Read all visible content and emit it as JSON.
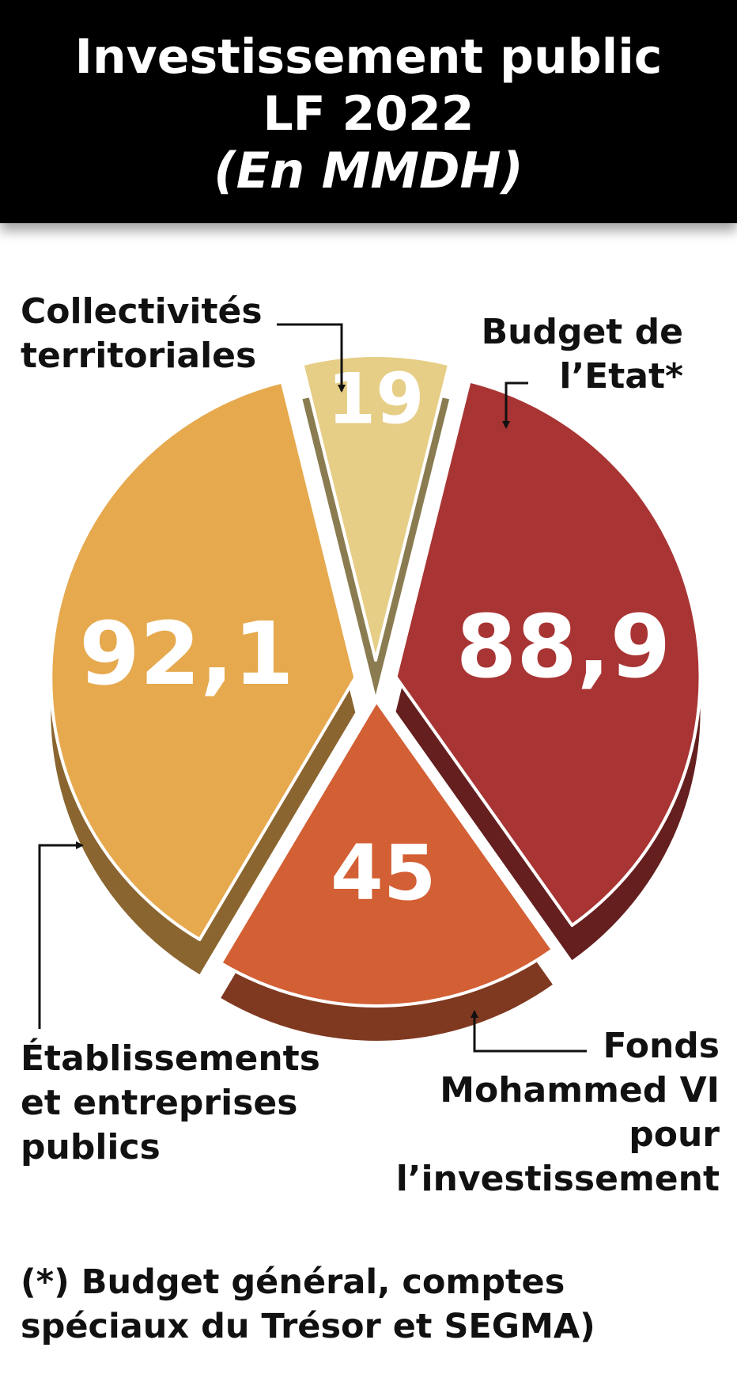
{
  "header": {
    "title_line1": "Investissement public",
    "title_line2": "LF 2022",
    "subtitle": "(En MMDH)"
  },
  "chart_data": {
    "type": "pie",
    "title": "Investissement public LF 2022",
    "subtitle": "(En MMDH)",
    "unit": "MMDH",
    "slices": [
      {
        "label": "Budget de l’Etat*",
        "value": 88.9,
        "display": "88,9",
        "color": "#A93434"
      },
      {
        "label": "Fonds Mohammed VI pour l’investissement",
        "value": 45,
        "display": "45",
        "color": "#D35F35"
      },
      {
        "label": "Établissements et entreprises publics",
        "value": 92.1,
        "display": "92,1",
        "color": "#E6A94E"
      },
      {
        "label": "Collectivités territoriales",
        "value": 19,
        "display": "19",
        "color": "#E6CE86"
      }
    ]
  },
  "labels": {
    "collectivites": [
      "Collectivités",
      "territoriales"
    ],
    "budget": [
      "Budget de",
      "l’Etat*"
    ],
    "etablissements": [
      "Établissements",
      "et entreprises",
      "publics"
    ],
    "fonds": [
      "Fonds",
      "Mohammed VI",
      "pour",
      "l’investissement"
    ]
  },
  "footnote": [
    "(*) Budget général, comptes",
    "spéciaux du Trésor et SEGMA)"
  ]
}
